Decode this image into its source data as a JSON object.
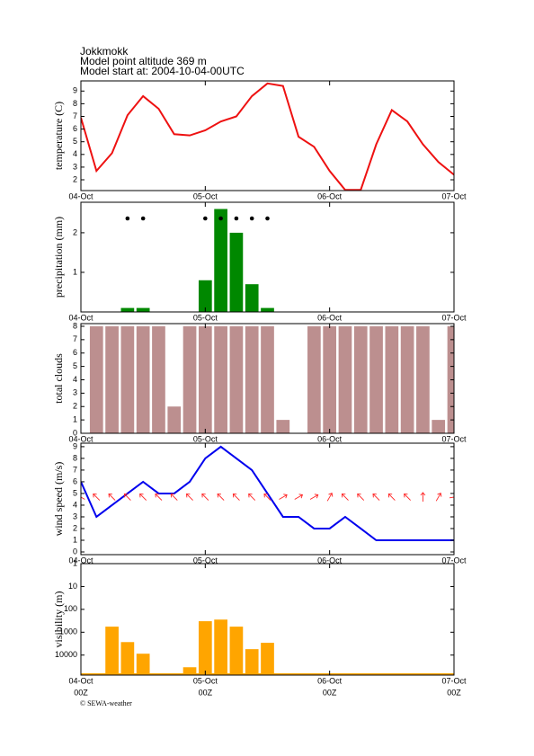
{
  "header": {
    "location": "Jokkmokk",
    "altitude": "Model point altitude  369 m",
    "model_start": "Model start at: 2004-10-04-00UTC"
  },
  "chart_data": [
    {
      "type": "line",
      "y_label": "temperature (C)",
      "color": "#ee1111",
      "x": [
        0,
        3,
        6,
        9,
        12,
        15,
        18,
        21,
        24,
        27,
        30,
        33,
        36,
        39,
        42,
        45,
        48,
        51,
        54,
        57,
        60,
        63,
        66,
        69,
        72
      ],
      "values": [
        6.9,
        2.7,
        4.1,
        7.1,
        8.6,
        7.6,
        5.6,
        5.5,
        5.9,
        6.6,
        7.0,
        8.6,
        9.6,
        9.4,
        5.4,
        4.6,
        2.7,
        1.2,
        1.2,
        4.8,
        7.5,
        6.6,
        4.8,
        3.4,
        2.4
      ],
      "xlim": [
        0,
        72
      ],
      "xticks": [
        {
          "value": 0,
          "label": "04-Oct"
        },
        {
          "value": 24,
          "label": "05-Oct"
        },
        {
          "value": 48,
          "label": "06-Oct"
        },
        {
          "value": 72,
          "label": "07-Oct"
        }
      ],
      "ylim": [
        1.15,
        9.8
      ],
      "yticks": [
        2,
        3,
        4,
        5,
        6,
        7,
        8,
        9
      ]
    },
    {
      "type": "bar",
      "y_label": "precipitation (mm)",
      "color": "#008800",
      "x": [
        9,
        12,
        24,
        27,
        30,
        33,
        36
      ],
      "values": [
        0.1,
        0.1,
        0.8,
        2.6,
        2.0,
        0.7,
        0.1
      ],
      "xlim": [
        0,
        72
      ],
      "xticks": [
        {
          "value": 0,
          "label": "04-Oct"
        },
        {
          "value": 24,
          "label": "05-Oct"
        },
        {
          "value": 48,
          "label": "06-Oct"
        },
        {
          "value": 72,
          "label": "07-Oct"
        }
      ],
      "ylim": [
        0,
        2.77
      ],
      "yticks": [
        1,
        2
      ]
    },
    {
      "type": "bar",
      "y_label": "total clouds",
      "color": "#bc8f8f",
      "x": [
        3,
        6,
        9,
        12,
        15,
        18,
        21,
        24,
        27,
        30,
        33,
        36,
        39,
        42,
        45,
        48,
        51,
        54,
        57,
        60,
        63,
        66,
        69,
        72
      ],
      "values": [
        8,
        8,
        8,
        8,
        8,
        2,
        8,
        8,
        8,
        8,
        8,
        8,
        1,
        0,
        8,
        8,
        8,
        8,
        8,
        8,
        8,
        8,
        1,
        8
      ],
      "xlim": [
        0,
        72
      ],
      "xticks": [
        {
          "value": 0,
          "label": "04-Oct"
        },
        {
          "value": 24,
          "label": "05-Oct"
        },
        {
          "value": 48,
          "label": "06-Oct"
        },
        {
          "value": 72,
          "label": "07-Oct"
        }
      ],
      "ylim": [
        0,
        8.2
      ],
      "yticks": [
        0,
        1,
        2,
        3,
        4,
        5,
        6,
        7,
        8
      ]
    },
    {
      "type": "line",
      "y_label": "wind speed (m/s)",
      "color": "#0000ee",
      "arrow_color": "#ff2222",
      "x": [
        0,
        3,
        6,
        9,
        12,
        15,
        18,
        21,
        24,
        27,
        30,
        33,
        36,
        39,
        42,
        45,
        48,
        51,
        54,
        57,
        60,
        63,
        66,
        69,
        72
      ],
      "values": [
        6,
        3,
        4,
        5,
        6,
        5,
        5,
        6,
        8,
        9,
        8,
        7,
        5,
        3,
        3,
        2,
        2,
        3,
        2,
        1,
        1,
        1,
        1,
        1,
        1
      ],
      "directions": [
        300,
        315,
        315,
        315,
        315,
        315,
        315,
        315,
        315,
        315,
        315,
        315,
        315,
        60,
        60,
        60,
        30,
        315,
        315,
        315,
        315,
        315,
        0,
        30,
        80
      ],
      "xlim": [
        0,
        72
      ],
      "xticks": [
        {
          "value": 0,
          "label": "04-Oct"
        },
        {
          "value": 24,
          "label": "05-Oct"
        },
        {
          "value": 48,
          "label": "06-Oct"
        },
        {
          "value": 72,
          "label": "07-Oct"
        }
      ],
      "ylim": [
        -0.23,
        9.3
      ],
      "yticks": [
        0,
        1,
        2,
        3,
        4,
        5,
        6,
        7,
        8,
        9
      ]
    },
    {
      "type": "bar",
      "y_label": "visibility (m)",
      "color": "#ffa500",
      "log_y": true,
      "y_inverted": true,
      "x": [
        0,
        3,
        6,
        9,
        12,
        15,
        18,
        21,
        24,
        27,
        30,
        33,
        36,
        39,
        42,
        45,
        48,
        51,
        54,
        57,
        60,
        63,
        66,
        69,
        72
      ],
      "values": [
        75000,
        75000,
        570,
        2700,
        8700,
        75000,
        75000,
        34000,
        330,
        280,
        570,
        5500,
        2900,
        75000,
        75000,
        75000,
        75000,
        75000,
        75000,
        75000,
        75000,
        75000,
        75000,
        75000,
        75000
      ],
      "xlim": [
        0,
        72
      ],
      "xticks": [
        {
          "value": 0,
          "label": "04-Oct"
        },
        {
          "value": 24,
          "label": "05-Oct"
        },
        {
          "value": 48,
          "label": "06-Oct"
        },
        {
          "value": 72,
          "label": "07-Oct"
        }
      ],
      "x_sublabel": "00Z",
      "ylim": [
        1,
        75000
      ],
      "yticks": [
        1,
        10,
        100,
        1000,
        10000
      ]
    }
  ],
  "footer": {
    "copyright": "© SEWA-weather"
  }
}
